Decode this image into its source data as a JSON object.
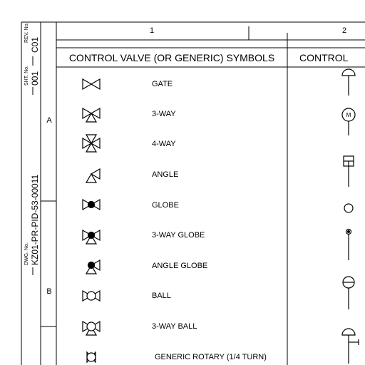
{
  "title_block": {
    "rev_caption": "REV. No.",
    "rev_value": "C01",
    "sheet_caption": "SHT. No.",
    "sheet_value": "001",
    "dwg_caption": "DWG. No.",
    "dwg_value": "KZ01-PR-PID-53-00011"
  },
  "zones": {
    "col_1": "1",
    "col_2": "2",
    "row_a": "A",
    "row_b": "B"
  },
  "panel_1": {
    "title": "CONTROL VALVE (OR GENERIC) SYMBOLS",
    "symbols": [
      {
        "icon": "gate-valve-icon",
        "label": "GATE"
      },
      {
        "icon": "three-way-valve-icon",
        "label": "3-WAY"
      },
      {
        "icon": "four-way-valve-icon",
        "label": "4-WAY"
      },
      {
        "icon": "angle-valve-icon",
        "label": "ANGLE"
      },
      {
        "icon": "globe-valve-icon",
        "label": "GLOBE"
      },
      {
        "icon": "three-way-globe-valve-icon",
        "label": "3-WAY GLOBE"
      },
      {
        "icon": "angle-globe-valve-icon",
        "label": "ANGLE GLOBE"
      },
      {
        "icon": "ball-valve-icon",
        "label": "BALL"
      },
      {
        "icon": "three-way-ball-valve-icon",
        "label": "3-WAY BALL"
      },
      {
        "icon": "generic-rotary-valve-icon",
        "label": "GENERIC ROTARY (1/4 TURN)"
      }
    ]
  },
  "panel_2": {
    "title_partial": "CONTROL",
    "actuators": [
      {
        "icon": "diaphragm-actuator-icon"
      },
      {
        "icon": "motor-actuator-icon",
        "mark": "M"
      },
      {
        "icon": "piston-actuator-icon"
      },
      {
        "icon": "generic-actuator-circle-icon"
      },
      {
        "icon": "solenoid-actuator-icon"
      },
      {
        "icon": "electro-hydraulic-actuator-icon"
      },
      {
        "icon": "diaphragm-handwheel-actuator-icon"
      }
    ]
  }
}
